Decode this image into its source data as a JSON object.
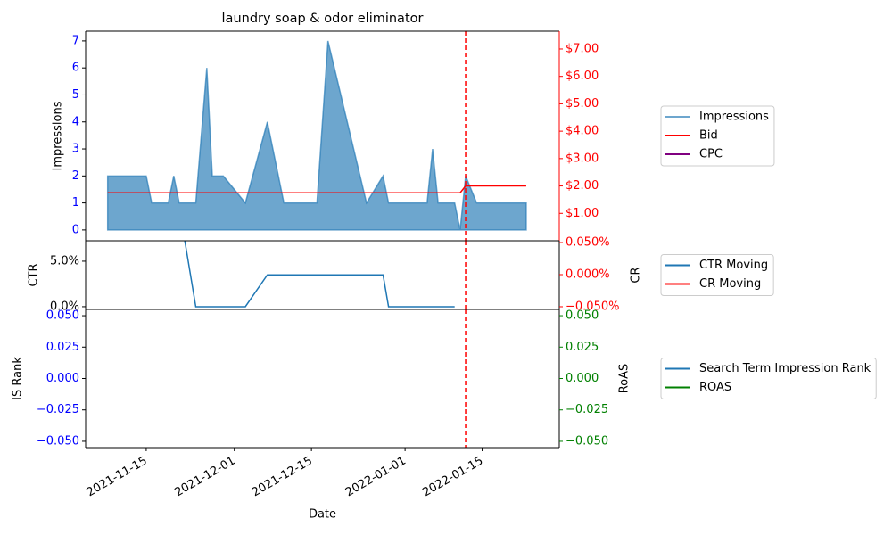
{
  "chart_data": [
    {
      "type": "area",
      "title": "laundry soap & odor eliminator",
      "ylabel": "Impressions",
      "xlim": [
        "2021-11-04",
        "2022-01-29"
      ],
      "vline": "2022-01-12",
      "vline_color": "#ff0000",
      "ylim": [
        -0.4,
        7.36
      ],
      "yticks": [
        0,
        1,
        2,
        3,
        4,
        5,
        6,
        7
      ],
      "ytick_color": "#0000ff",
      "y2lim": [
        0,
        7.65
      ],
      "y2tick_color": "#ff0000",
      "y2ticks": [
        {
          "value": 1,
          "label": "$1.00"
        },
        {
          "value": 2,
          "label": "$2.00"
        },
        {
          "value": 3,
          "label": "$3.00"
        },
        {
          "value": 4,
          "label": "$4.00"
        },
        {
          "value": 5,
          "label": "$5.00"
        },
        {
          "value": 6,
          "label": "$6.00"
        },
        {
          "value": 7,
          "label": "$7.00"
        }
      ],
      "legend": "right",
      "series": [
        {
          "name": "Impressions",
          "type": "area",
          "color": "#1f77b4",
          "alpha": 0.65,
          "x": [
            "2021-11-08",
            "2021-11-15",
            "2021-11-16",
            "2021-11-19",
            "2021-11-20",
            "2021-11-21",
            "2021-11-24",
            "2021-11-26",
            "2021-11-27",
            "2021-11-29",
            "2021-12-03",
            "2021-12-07",
            "2021-12-10",
            "2021-12-16",
            "2021-12-18",
            "2021-12-25",
            "2021-12-28",
            "2021-12-29",
            "2022-01-05",
            "2022-01-06",
            "2022-01-07",
            "2022-01-10",
            "2022-01-11",
            "2022-01-12",
            "2022-01-14",
            "2022-01-23"
          ],
          "values": [
            2,
            2,
            1,
            1,
            2,
            1,
            1,
            6,
            2,
            2,
            1,
            4,
            1,
            1,
            7,
            1,
            2,
            1,
            1,
            3,
            1,
            1,
            0,
            2,
            1,
            1
          ]
        },
        {
          "name": "Bid",
          "type": "line",
          "axis": "y2",
          "color": "#ff0000",
          "x": [
            "2021-11-08",
            "2022-01-11",
            "2022-01-12",
            "2022-01-23"
          ],
          "values": [
            1.75,
            1.75,
            2.0,
            2.0
          ]
        },
        {
          "name": "CPC",
          "type": "line",
          "axis": "y2",
          "color": "#800080",
          "x": [],
          "values": []
        }
      ]
    },
    {
      "type": "line",
      "ylabel": "CTR",
      "y2label": "CR",
      "xlim": [
        "2021-11-04",
        "2022-01-29"
      ],
      "vline": "2022-01-12",
      "vline_color": "#ff0000",
      "ylim": [
        -0.3,
        7.25
      ],
      "ytick_color": "#000000",
      "yticks": [
        {
          "value": 0,
          "label": "0.0%"
        },
        {
          "value": 5,
          "label": "5.0%"
        }
      ],
      "y2lim": [
        -0.0542,
        0.0528
      ],
      "y2tick_color": "#ff0000",
      "y2ticks": [
        {
          "value": -0.05,
          "label": "−0.050%"
        },
        {
          "value": 0,
          "label": "0.000%"
        },
        {
          "value": 0.05,
          "label": "0.050%"
        }
      ],
      "legend": "right",
      "series": [
        {
          "name": "CTR Moving",
          "type": "line",
          "color": "#1f77b4",
          "x": [
            "2021-11-21",
            "2021-11-24",
            "2021-12-03",
            "2021-12-07",
            "2021-12-28",
            "2021-12-29",
            "2022-01-10"
          ],
          "values": [
            10.9,
            0,
            0,
            3.5,
            3.5,
            0,
            0
          ]
        },
        {
          "name": "CR Moving",
          "type": "line",
          "axis": "y2",
          "color": "#ff0000",
          "x": [],
          "values": []
        }
      ]
    },
    {
      "type": "line",
      "ylabel": "IS Rank",
      "y2label": "RoAS",
      "xlabel": "Date",
      "xlim": [
        "2021-11-04",
        "2022-01-29"
      ],
      "vline": "2022-01-12",
      "vline_color": "#ff0000",
      "ylim": [
        -0.055,
        0.055
      ],
      "ytick_color": "#0000ff",
      "yticks": [
        {
          "value": -0.05,
          "label": "−0.050"
        },
        {
          "value": -0.025,
          "label": "−0.025"
        },
        {
          "value": 0,
          "label": "0.000"
        },
        {
          "value": 0.025,
          "label": "0.025"
        },
        {
          "value": 0.05,
          "label": "0.050"
        }
      ],
      "y2lim": [
        -0.055,
        0.055
      ],
      "y2tick_color": "#008000",
      "y2ticks": [
        {
          "value": -0.05,
          "label": "−0.050"
        },
        {
          "value": -0.025,
          "label": "−0.025"
        },
        {
          "value": 0,
          "label": "0.000"
        },
        {
          "value": 0.025,
          "label": "0.025"
        },
        {
          "value": 0.05,
          "label": "0.050"
        }
      ],
      "xticks": [
        "2021-11-15",
        "2021-12-01",
        "2021-12-15",
        "2022-01-01",
        "2022-01-15"
      ],
      "legend": "right",
      "series": [
        {
          "name": "Search Term Impression Rank",
          "type": "line",
          "color": "#1f77b4",
          "x": [],
          "values": []
        },
        {
          "name": "ROAS",
          "type": "line",
          "axis": "y2",
          "color": "#008000",
          "x": [],
          "values": []
        }
      ]
    }
  ]
}
